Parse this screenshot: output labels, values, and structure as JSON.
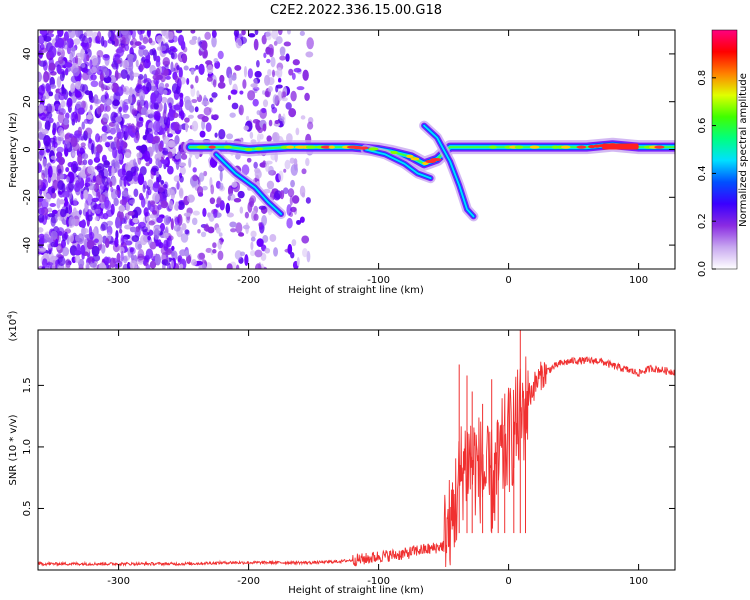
{
  "title": "C2E2.2022.336.15.00.G18",
  "chart_data": [
    {
      "type": "heatmap",
      "xlabel": "Height of straight line (km)",
      "ylabel": "Frequency (Hz)",
      "xlim": [
        -362,
        128
      ],
      "ylim": [
        -50,
        50
      ],
      "x_ticks": [
        -300,
        -200,
        -100,
        0,
        100
      ],
      "y_ticks": [
        -40,
        -20,
        0,
        20,
        40
      ],
      "colorbar": {
        "label": "Normalized spectral amplitude",
        "range": [
          0.0,
          1.0
        ],
        "ticks": [
          0.0,
          0.2,
          0.4,
          0.6,
          0.8
        ],
        "colors": [
          "#ffffff",
          "#c8a8f0",
          "#8a2be2",
          "#3a00ff",
          "#0050ff",
          "#00e0ff",
          "#00ff80",
          "#40ff00",
          "#e0ff00",
          "#ff8000",
          "#ff0000",
          "#ff0080"
        ]
      },
      "main_trace": [
        [
          -245,
          1
        ],
        [
          -230,
          1
        ],
        [
          -215,
          1
        ],
        [
          -200,
          0
        ],
        [
          -170,
          1
        ],
        [
          -140,
          1
        ],
        [
          -120,
          1
        ],
        [
          -100,
          0
        ],
        [
          -90,
          -1
        ],
        [
          -75,
          -3
        ],
        [
          -65,
          -6
        ],
        [
          -55,
          -4
        ],
        [
          -45,
          1
        ],
        [
          -35,
          1
        ],
        [
          -25,
          1
        ],
        [
          -15,
          1
        ],
        [
          0,
          1
        ],
        [
          30,
          1
        ],
        [
          60,
          1
        ],
        [
          80,
          2
        ],
        [
          100,
          1
        ],
        [
          128,
          1
        ]
      ],
      "branch_traces": [
        [
          [
            -225,
            -2
          ],
          [
            -210,
            -10
          ],
          [
            -195,
            -16
          ],
          [
            -185,
            -22
          ],
          [
            -175,
            -27
          ]
        ],
        [
          [
            -110,
            0
          ],
          [
            -95,
            -2
          ],
          [
            -80,
            -6
          ],
          [
            -70,
            -10
          ],
          [
            -60,
            -12
          ]
        ],
        [
          [
            -65,
            10
          ],
          [
            -55,
            5
          ],
          [
            -45,
            -5
          ],
          [
            -38,
            -15
          ],
          [
            -32,
            -25
          ],
          [
            -27,
            -28
          ]
        ]
      ]
    },
    {
      "type": "line",
      "xlabel": "Height of straight line (km)",
      "ylabel": "SNR (10 * v/v)",
      "y_multiplier": "(x10",
      "y_exponent": "4",
      "y_multiplier_close": ")",
      "xlim": [
        -362,
        128
      ],
      "ylim": [
        0,
        1.95
      ],
      "x_ticks": [
        -300,
        -200,
        -100,
        0,
        100
      ],
      "y_ticks": [
        0.5,
        1.0,
        1.5
      ],
      "color": "#f03030",
      "series": [
        {
          "x": [
            -362,
            -300,
            -250,
            -215,
            -200,
            -150,
            -130,
            -110,
            -100,
            -90,
            -80,
            -70,
            -60,
            -50,
            -45,
            -40,
            -35,
            -30,
            -25,
            -20,
            -15,
            -10,
            -5,
            0,
            5,
            10,
            15,
            20,
            25,
            30,
            40,
            50,
            60,
            70,
            80,
            90,
            100,
            110,
            120,
            128
          ],
          "y": [
            0.05,
            0.05,
            0.05,
            0.06,
            0.06,
            0.06,
            0.07,
            0.09,
            0.11,
            0.12,
            0.13,
            0.16,
            0.17,
            0.2,
            0.35,
            0.6,
            0.85,
            0.9,
            0.85,
            0.8,
            0.7,
            0.75,
            0.95,
            1.05,
            1.15,
            1.25,
            1.4,
            1.5,
            1.58,
            1.62,
            1.68,
            1.7,
            1.7,
            1.7,
            1.66,
            1.63,
            1.6,
            1.64,
            1.62,
            1.61
          ]
        }
      ],
      "spikes": [
        [
          -38,
          1.67
        ],
        [
          -32,
          1.58
        ],
        [
          -28,
          1.45
        ],
        [
          -20,
          1.35
        ],
        [
          -13,
          1.55
        ],
        [
          -8,
          1.2
        ],
        [
          -3,
          1.1
        ],
        [
          4,
          1.2
        ],
        [
          9,
          1.95
        ],
        [
          13,
          1.4
        ]
      ]
    }
  ]
}
